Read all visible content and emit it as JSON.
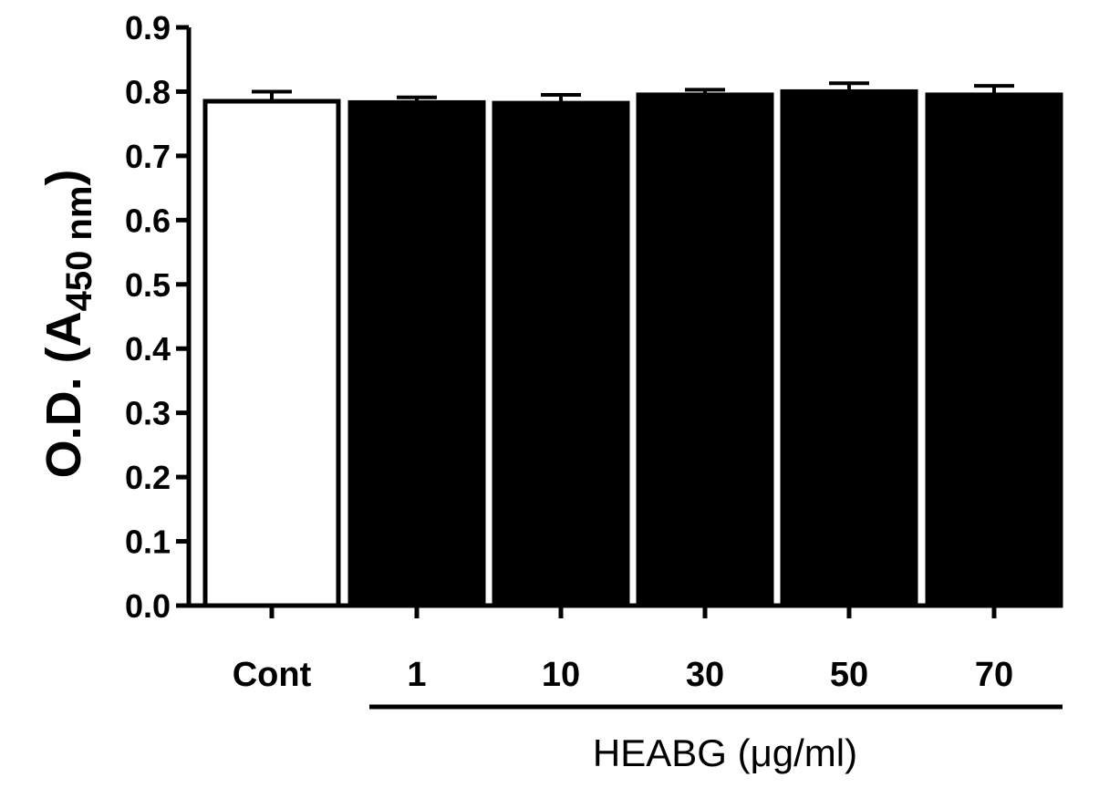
{
  "chart_data": {
    "type": "bar",
    "categories": [
      "Cont",
      "1",
      "10",
      "30",
      "50",
      "70"
    ],
    "values": [
      0.785,
      0.783,
      0.782,
      0.795,
      0.8,
      0.795
    ],
    "errors": [
      0.015,
      0.008,
      0.013,
      0.008,
      0.013,
      0.014
    ],
    "bar_fills": [
      "#ffffff",
      "#000000",
      "#000000",
      "#000000",
      "#000000",
      "#000000"
    ],
    "ylim": [
      0.0,
      0.9
    ],
    "yticks": [
      "0.0",
      "0.1",
      "0.2",
      "0.3",
      "0.4",
      "0.5",
      "0.6",
      "0.7",
      "0.8",
      "0.9"
    ],
    "ylabel_main": "O.D. (A",
    "ylabel_sub": "450 nm",
    "ylabel_close": ")",
    "group_label": "HEABG (μg/ml)",
    "grid": false,
    "legend": "none"
  }
}
